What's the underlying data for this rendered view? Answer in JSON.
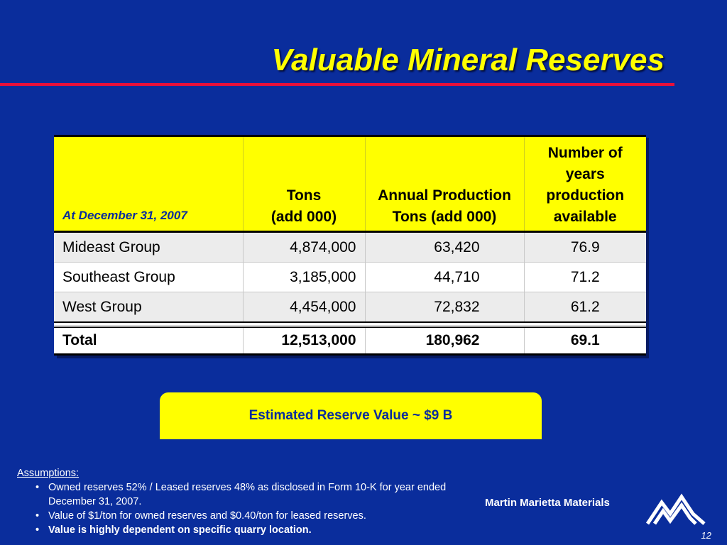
{
  "slide": {
    "title": "Valuable Mineral Reserves",
    "page_number": "12"
  },
  "table": {
    "headers": [
      "At December 31, 2007",
      "Tons\n(add 000)",
      "Annual Production Tons (add 000)",
      "Number of years production available"
    ],
    "rows": [
      [
        "Mideast Group",
        "4,874,000",
        "63,420",
        "76.9"
      ],
      [
        "Southeast Group",
        "3,185,000",
        "44,710",
        "71.2"
      ],
      [
        "West Group",
        "4,454,000",
        "72,832",
        "61.2"
      ]
    ],
    "total": [
      "Total",
      "12,513,000",
      "180,962",
      "69.1"
    ]
  },
  "callout": {
    "text": "Estimated Reserve Value ~ $9 B"
  },
  "assumptions": {
    "heading": "Assumptions:",
    "items": [
      "Owned reserves 52% / Leased reserves 48% as disclosed in Form 10-K for year ended December 31, 2007.",
      "Value of $1/ton for owned reserves and $0.40/ton for leased reserves.",
      "Value is highly dependent on specific quarry location."
    ]
  },
  "brand": {
    "name": "Martin Marietta Materials",
    "logo_icon": "martin-marietta-mountains-logo"
  },
  "colors": {
    "background": "#0a2d9c",
    "accent_yellow": "#ffff00",
    "rule_red": "#e8103a"
  }
}
